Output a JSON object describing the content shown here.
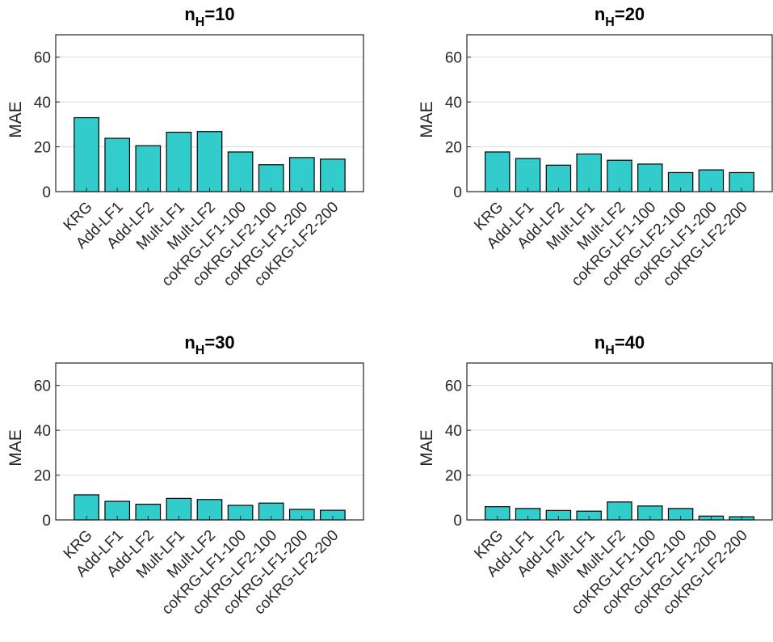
{
  "chart_data": [
    {
      "type": "bar",
      "title": {
        "base": "n",
        "sub": "H",
        "suffix": "=10"
      },
      "ylabel": "MAE",
      "categories": [
        "KRG",
        "Add-LF1",
        "Add-LF2",
        "Mult-LF1",
        "Mult-LF2",
        "coKRG-LF1-100",
        "coKRG-LF2-100",
        "coKRG-LF1-200",
        "coKRG-LF2-200"
      ],
      "values": [
        33,
        23.8,
        20.5,
        26.5,
        26.8,
        17.7,
        12,
        15.2,
        14.5
      ],
      "ylim": [
        0,
        70
      ],
      "yticks": [
        0,
        20,
        40,
        60
      ],
      "grid": true
    },
    {
      "type": "bar",
      "title": {
        "base": "n",
        "sub": "H",
        "suffix": "=20"
      },
      "ylabel": "MAE",
      "categories": [
        "KRG",
        "Add-LF1",
        "Add-LF2",
        "Mult-LF1",
        "Mult-LF2",
        "coKRG-LF1-100",
        "coKRG-LF2-100",
        "coKRG-LF1-200",
        "coKRG-LF2-200"
      ],
      "values": [
        17.7,
        14.8,
        11.8,
        16.8,
        14,
        12.3,
        8.5,
        9.7,
        8.5
      ],
      "ylim": [
        0,
        70
      ],
      "yticks": [
        0,
        20,
        40,
        60
      ],
      "grid": true
    },
    {
      "type": "bar",
      "title": {
        "base": "n",
        "sub": "H",
        "suffix": "=30"
      },
      "ylabel": "MAE",
      "categories": [
        "KRG",
        "Add-LF1",
        "Add-LF2",
        "Mult-LF1",
        "Mult-LF2",
        "coKRG-LF1-100",
        "coKRG-LF2-100",
        "coKRG-LF1-200",
        "coKRG-LF2-200"
      ],
      "values": [
        11.2,
        8.3,
        7,
        9.6,
        9.1,
        6.5,
        7.5,
        4.7,
        4.3
      ],
      "ylim": [
        0,
        70
      ],
      "yticks": [
        0,
        20,
        40,
        60
      ],
      "grid": true
    },
    {
      "type": "bar",
      "title": {
        "base": "n",
        "sub": "H",
        "suffix": "=40"
      },
      "ylabel": "MAE",
      "categories": [
        "KRG",
        "Add-LF1",
        "Add-LF2",
        "Mult-LF1",
        "Mult-LF2",
        "coKRG-LF1-100",
        "coKRG-LF2-100",
        "coKRG-LF1-200",
        "coKRG-LF2-200"
      ],
      "values": [
        5.9,
        5.1,
        4.2,
        3.9,
        8,
        6.2,
        5.1,
        1.7,
        1.4
      ],
      "ylim": [
        0,
        70
      ],
      "yticks": [
        0,
        20,
        40,
        60
      ],
      "grid": true
    }
  ],
  "style": {
    "bar_color": "#33cccc",
    "axis_color": "#262626",
    "grid_color": "#dcdcdc"
  }
}
